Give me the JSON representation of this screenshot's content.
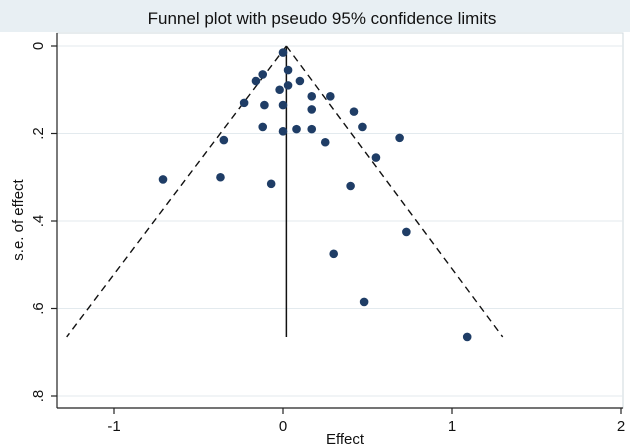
{
  "chart_data": {
    "type": "scatter",
    "title": "Funnel plot with pseudo 95% confidence limits",
    "xlabel": "Effect",
    "ylabel": "s.e. of effect",
    "xlim": [
      -1.32,
      2.0
    ],
    "ylim": [
      0,
      0.82
    ],
    "y_reversed": true,
    "y_tick_rotation": 90,
    "grid": "horizontal",
    "xticks": [
      -1,
      0,
      1,
      2
    ],
    "xtick_labels": [
      "-1",
      "0",
      "1",
      "2"
    ],
    "yticks": [
      0,
      0.2,
      0.4,
      0.6,
      0.8
    ],
    "ytick_labels": [
      "0",
      ".2",
      ".4",
      ".6",
      ".8"
    ],
    "pooled_effect": 0.02,
    "reference_line_se_max": 0.665,
    "confidence_limits": {
      "style": "dashed",
      "left": [
        [
          0.02,
          0
        ],
        [
          -1.28,
          0.665
        ]
      ],
      "right": [
        [
          0.02,
          0
        ],
        [
          1.3,
          0.665
        ]
      ]
    },
    "marker_color": "#1f3d66",
    "points": [
      {
        "x": 0.0,
        "y": 0.015
      },
      {
        "x": 0.03,
        "y": 0.055
      },
      {
        "x": -0.12,
        "y": 0.065
      },
      {
        "x": -0.16,
        "y": 0.08
      },
      {
        "x": 0.1,
        "y": 0.08
      },
      {
        "x": 0.03,
        "y": 0.09
      },
      {
        "x": -0.02,
        "y": 0.1
      },
      {
        "x": 0.17,
        "y": 0.115
      },
      {
        "x": 0.28,
        "y": 0.115
      },
      {
        "x": -0.23,
        "y": 0.13
      },
      {
        "x": -0.11,
        "y": 0.135
      },
      {
        "x": 0.0,
        "y": 0.135
      },
      {
        "x": 0.17,
        "y": 0.145
      },
      {
        "x": 0.42,
        "y": 0.15
      },
      {
        "x": -0.12,
        "y": 0.185
      },
      {
        "x": 0.08,
        "y": 0.19
      },
      {
        "x": 0.17,
        "y": 0.19
      },
      {
        "x": 0.47,
        "y": 0.185
      },
      {
        "x": 0.0,
        "y": 0.195
      },
      {
        "x": 0.69,
        "y": 0.21
      },
      {
        "x": -0.35,
        "y": 0.215
      },
      {
        "x": 0.25,
        "y": 0.22
      },
      {
        "x": 0.55,
        "y": 0.255
      },
      {
        "x": -0.37,
        "y": 0.3
      },
      {
        "x": -0.71,
        "y": 0.305
      },
      {
        "x": -0.07,
        "y": 0.315
      },
      {
        "x": 0.4,
        "y": 0.32
      },
      {
        "x": 0.73,
        "y": 0.425
      },
      {
        "x": 0.3,
        "y": 0.475
      },
      {
        "x": 0.48,
        "y": 0.585
      },
      {
        "x": 1.09,
        "y": 0.665
      }
    ]
  }
}
